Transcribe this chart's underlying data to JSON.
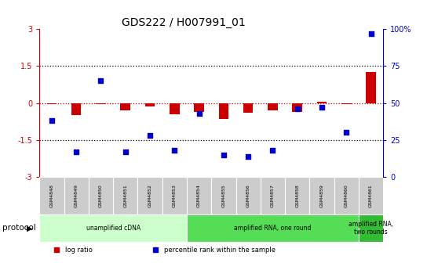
{
  "title": "GDS222 / H007991_01",
  "samples": [
    "GSM4848",
    "GSM4849",
    "GSM4850",
    "GSM4851",
    "GSM4852",
    "GSM4853",
    "GSM4854",
    "GSM4855",
    "GSM4856",
    "GSM4857",
    "GSM4858",
    "GSM4859",
    "GSM4860",
    "GSM4861"
  ],
  "log_ratio": [
    -0.05,
    -0.5,
    -0.05,
    -0.3,
    -0.15,
    -0.45,
    -0.35,
    -0.65,
    -0.4,
    -0.3,
    -0.35,
    0.05,
    -0.05,
    1.25
  ],
  "percentile_rank": [
    38,
    17,
    65,
    17,
    28,
    18,
    43,
    15,
    14,
    18,
    46,
    47,
    30,
    97
  ],
  "ylim": [
    -3,
    3
  ],
  "y2lim": [
    0,
    100
  ],
  "yticks": [
    -3,
    -1.5,
    0,
    1.5,
    3
  ],
  "y2ticks": [
    0,
    25,
    50,
    75,
    100
  ],
  "hlines": [
    1.5,
    -1.5
  ],
  "hline_zero": 0,
  "bar_color": "#cc0000",
  "scatter_color": "#0000cc",
  "protocol_groups": [
    {
      "label": "unamplified cDNA",
      "start": 0,
      "end": 5,
      "color": "#ccffcc"
    },
    {
      "label": "amplified RNA, one round",
      "start": 6,
      "end": 12,
      "color": "#55dd55"
    },
    {
      "label": "amplified RNA,\ntwo rounds",
      "start": 13,
      "end": 13,
      "color": "#33bb33"
    }
  ],
  "legend_items": [
    {
      "label": "log ratio",
      "color": "#cc0000"
    },
    {
      "label": "percentile rank within the sample",
      "color": "#0000cc"
    }
  ],
  "protocol_label": "protocol",
  "background_color": "#ffffff",
  "plot_bg": "#ffffff",
  "sample_box_color": "#cccccc"
}
